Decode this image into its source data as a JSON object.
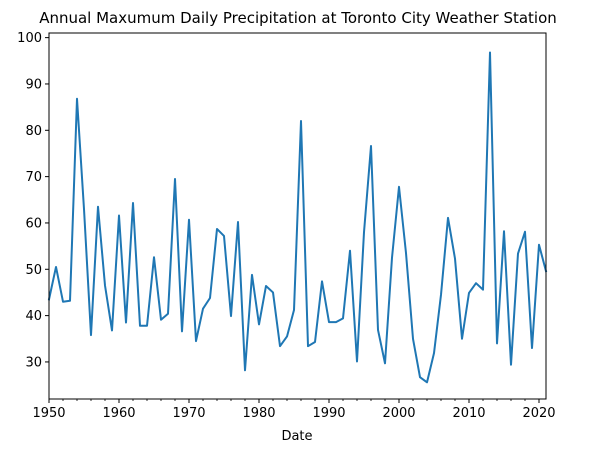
{
  "chart_data": {
    "type": "line",
    "title": "Annual Maxumum Daily Precipitation at Toronto City Weather Station",
    "xlabel": "Date",
    "ylabel": "",
    "xlim": [
      1950,
      2021
    ],
    "ylim": [
      22,
      101
    ],
    "x_ticks": [
      1950,
      1960,
      1970,
      1980,
      1990,
      2000,
      2010,
      2020
    ],
    "x_tick_labels": [
      "1950",
      "1960",
      "1970",
      "1980",
      "1990",
      "2000",
      "2010",
      "2020"
    ],
    "y_ticks": [
      30,
      40,
      50,
      60,
      70,
      80,
      90,
      100
    ],
    "y_tick_labels": [
      "30",
      "40",
      "50",
      "60",
      "70",
      "80",
      "90",
      "100"
    ],
    "line_color": "#1f77b4",
    "grid": false,
    "legend": "none",
    "series": [
      {
        "x": [
          1950,
          1951,
          1952,
          1953,
          1954,
          1955,
          1956,
          1957,
          1958,
          1959,
          1960,
          1961,
          1962,
          1963,
          1964,
          1965,
          1966,
          1967,
          1968,
          1969,
          1970,
          1971,
          1972,
          1973,
          1974,
          1975,
          1976,
          1977,
          1978,
          1979,
          1980,
          1981,
          1982,
          1983,
          1984,
          1985,
          1986,
          1987,
          1988,
          1989,
          1990,
          1991,
          1992,
          1993,
          1994,
          1995,
          1996,
          1997,
          1998,
          1999,
          2000,
          2001,
          2002,
          2003,
          2004,
          2005,
          2006,
          2007,
          2008,
          2009,
          2010,
          2011,
          2012,
          2013,
          2014,
          2015,
          2016,
          2017,
          2018,
          2019,
          2020,
          2021
        ],
        "y": [
          43.5,
          50.5,
          43,
          43.2,
          86.8,
          63,
          35.8,
          63.5,
          46.5,
          36.8,
          61.6,
          38.5,
          64.3,
          37.8,
          37.8,
          52.6,
          39.1,
          40.4,
          69.5,
          36.6,
          60.7,
          34.5,
          41.5,
          43.8,
          58.7,
          57.2,
          39.9,
          60.2,
          28.2,
          48.8,
          38.1,
          46.4,
          45,
          33.4,
          35.5,
          41.2,
          82,
          33.4,
          34.3,
          47.4,
          38.6,
          38.6,
          39.4,
          54,
          30.1,
          58,
          76.6,
          36.9,
          29.7,
          52.5,
          67.8,
          53.5,
          35,
          26.7,
          25.6,
          31.9,
          44.5,
          61.1,
          52.3,
          35,
          44.9,
          47,
          45.6,
          96.8,
          34,
          58.2,
          29.4,
          53.4,
          58.1,
          33,
          55.3,
          49.6
        ]
      }
    ]
  }
}
